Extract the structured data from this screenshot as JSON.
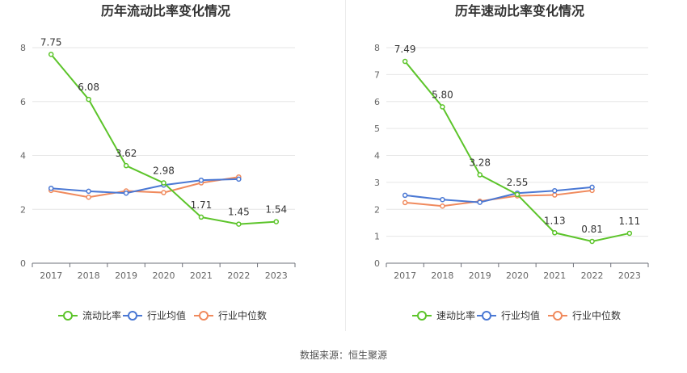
{
  "chart_data": [
    {
      "type": "line",
      "title": "历年流动比率变化情况",
      "categories": [
        "2017",
        "2018",
        "2019",
        "2020",
        "2021",
        "2022",
        "2023"
      ],
      "ylim": [
        0,
        8
      ],
      "yticks": [
        0,
        2,
        4,
        6,
        8
      ],
      "grid": true,
      "legend_position": "bottom-center",
      "series": [
        {
          "name": "流动比率",
          "color": "#5cc42a",
          "labels": true,
          "values": [
            7.75,
            6.08,
            3.62,
            2.98,
            1.71,
            1.45,
            1.54
          ],
          "value_labels": [
            "7.75",
            "6.08",
            "3.62",
            "2.98",
            "1.71",
            "1.45",
            "1.54"
          ]
        },
        {
          "name": "行业均值",
          "color": "#4a78d4",
          "labels": false,
          "values": [
            2.78,
            2.67,
            2.6,
            2.9,
            3.08,
            3.12,
            null
          ]
        },
        {
          "name": "行业中位数",
          "color": "#f08a5d",
          "labels": false,
          "values": [
            2.7,
            2.45,
            2.68,
            2.62,
            2.98,
            3.2,
            null
          ]
        }
      ]
    },
    {
      "type": "line",
      "title": "历年速动比率变化情况",
      "categories": [
        "2017",
        "2018",
        "2019",
        "2020",
        "2021",
        "2022",
        "2023"
      ],
      "ylim": [
        0,
        8
      ],
      "yticks": [
        0,
        1,
        2,
        3,
        4,
        5,
        6,
        7,
        8
      ],
      "grid": true,
      "legend_position": "bottom-center",
      "series": [
        {
          "name": "速动比率",
          "color": "#5cc42a",
          "labels": true,
          "values": [
            7.49,
            5.8,
            3.28,
            2.55,
            1.13,
            0.81,
            1.11
          ],
          "value_labels": [
            "7.49",
            "5.80",
            "3.28",
            "2.55",
            "1.13",
            "0.81",
            "1.11"
          ]
        },
        {
          "name": "行业均值",
          "color": "#4a78d4",
          "labels": false,
          "values": [
            2.52,
            2.36,
            2.26,
            2.6,
            2.69,
            2.82,
            null
          ]
        },
        {
          "name": "行业中位数",
          "color": "#f08a5d",
          "labels": false,
          "values": [
            2.25,
            2.12,
            2.3,
            2.5,
            2.53,
            2.7,
            null
          ]
        }
      ]
    }
  ],
  "footer": {
    "source": "数据来源：恒生聚源"
  }
}
